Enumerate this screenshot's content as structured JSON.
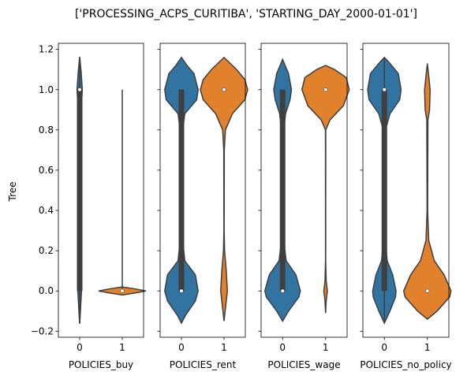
{
  "figure": {
    "suptitle": "['PROCESSING_ACPS_CURITIBA', 'STARTING_DAY_2000-01-01']"
  },
  "chart_data": [
    {
      "type": "violin",
      "xlabel": "POLICIES_buy",
      "ylabel": "Tree",
      "categories": [
        "0",
        "1"
      ],
      "ylim": [
        -0.23,
        1.23
      ],
      "yticks": [
        "1.2",
        "1.0",
        "0.8",
        "0.6",
        "0.4",
        "0.2",
        "0.0",
        "−0.2"
      ],
      "colors": [
        "#3274a1",
        "#e1812c"
      ],
      "violins": [
        {
          "category": "0",
          "median": 1.0,
          "q1": 0.0,
          "q3": 1.0,
          "whisker_low": -0.16,
          "whisker_high": 1.16,
          "density": [
            [
              -0.16,
              0.002
            ],
            [
              0.0,
              0.035
            ],
            [
              0.2,
              0.03
            ],
            [
              0.5,
              0.03
            ],
            [
              0.8,
              0.03
            ],
            [
              0.95,
              0.04
            ],
            [
              1.0,
              0.05
            ],
            [
              1.08,
              0.03
            ],
            [
              1.16,
              0.002
            ]
          ]
        },
        {
          "category": "1",
          "median": 0.0,
          "q1": 0.0,
          "q3": 0.0,
          "whisker_low": 0.0,
          "whisker_high": 1.0,
          "density": [
            [
              -0.02,
              0.0
            ],
            [
              -0.01,
              0.25
            ],
            [
              0.0,
              0.45
            ],
            [
              0.01,
              0.25
            ],
            [
              0.02,
              0.0
            ]
          ]
        }
      ]
    },
    {
      "type": "violin",
      "xlabel": "POLICIES_rent",
      "categories": [
        "0",
        "1"
      ],
      "ylim": [
        -0.23,
        1.23
      ],
      "colors": [
        "#3274a1",
        "#e1812c"
      ],
      "violins": [
        {
          "category": "0",
          "median": 0.0,
          "q1": 0.0,
          "q3": 1.0,
          "whisker_low": 0.0,
          "whisker_high": 1.0,
          "density": [
            [
              -0.16,
              0.0
            ],
            [
              -0.12,
              0.15
            ],
            [
              -0.05,
              0.5
            ],
            [
              0.0,
              0.6
            ],
            [
              0.08,
              0.5
            ],
            [
              0.15,
              0.12
            ],
            [
              0.25,
              0.05
            ],
            [
              0.5,
              0.04
            ],
            [
              0.8,
              0.05
            ],
            [
              0.88,
              0.12
            ],
            [
              0.95,
              0.55
            ],
            [
              1.0,
              0.6
            ],
            [
              1.08,
              0.45
            ],
            [
              1.12,
              0.2
            ],
            [
              1.16,
              0.0
            ]
          ]
        },
        {
          "category": "1",
          "median": 1.0,
          "q1": 1.0,
          "q3": 1.0,
          "whisker_low": 1.0,
          "whisker_high": 1.0,
          "density": [
            [
              -0.15,
              0.0
            ],
            [
              -0.1,
              0.04
            ],
            [
              0.0,
              0.12
            ],
            [
              0.1,
              0.08
            ],
            [
              0.2,
              0.02
            ],
            [
              0.3,
              0.005
            ],
            [
              0.7,
              0.01
            ],
            [
              0.8,
              0.05
            ],
            [
              0.88,
              0.3
            ],
            [
              0.95,
              0.75
            ],
            [
              1.0,
              0.85
            ],
            [
              1.05,
              0.75
            ],
            [
              1.1,
              0.45
            ],
            [
              1.16,
              0.0
            ]
          ]
        }
      ]
    },
    {
      "type": "violin",
      "xlabel": "POLICIES_wage",
      "categories": [
        "0",
        "1"
      ],
      "ylim": [
        -0.23,
        1.23
      ],
      "colors": [
        "#3274a1",
        "#e1812c"
      ],
      "violins": [
        {
          "category": "0",
          "median": 0.0,
          "q1": 0.0,
          "q3": 1.0,
          "whisker_low": 0.0,
          "whisker_high": 1.0,
          "density": [
            [
              -0.15,
              0.0
            ],
            [
              -0.1,
              0.2
            ],
            [
              -0.03,
              0.55
            ],
            [
              0.0,
              0.6
            ],
            [
              0.08,
              0.45
            ],
            [
              0.15,
              0.12
            ],
            [
              0.25,
              0.04
            ],
            [
              0.5,
              0.03
            ],
            [
              0.8,
              0.04
            ],
            [
              0.88,
              0.1
            ],
            [
              0.95,
              0.25
            ],
            [
              1.0,
              0.3
            ],
            [
              1.08,
              0.2
            ],
            [
              1.15,
              0.0
            ]
          ]
        },
        {
          "category": "1",
          "median": 1.0,
          "q1": 1.0,
          "q3": 1.0,
          "whisker_low": 1.0,
          "whisker_high": 1.0,
          "density": [
            [
              -0.11,
              0.0
            ],
            [
              -0.05,
              0.02
            ],
            [
              0.0,
              0.06
            ],
            [
              0.05,
              0.02
            ],
            [
              0.15,
              0.003
            ],
            [
              0.8,
              0.005
            ],
            [
              0.85,
              0.15
            ],
            [
              0.92,
              0.6
            ],
            [
              1.0,
              0.8
            ],
            [
              1.06,
              0.7
            ],
            [
              1.1,
              0.3
            ],
            [
              1.12,
              0.0
            ]
          ]
        }
      ]
    },
    {
      "type": "violin",
      "xlabel": "POLICIES_no_policy",
      "categories": [
        "0",
        "1"
      ],
      "ylim": [
        -0.23,
        1.23
      ],
      "colors": [
        "#3274a1",
        "#e1812c"
      ],
      "violins": [
        {
          "category": "0",
          "median": 1.0,
          "q1": 0.0,
          "q3": 1.0,
          "whisker_low": -0.16,
          "whisker_high": 1.16,
          "density": [
            [
              -0.16,
              0.0
            ],
            [
              -0.1,
              0.2
            ],
            [
              -0.03,
              0.4
            ],
            [
              0.0,
              0.42
            ],
            [
              0.08,
              0.3
            ],
            [
              0.15,
              0.1
            ],
            [
              0.25,
              0.04
            ],
            [
              0.5,
              0.03
            ],
            [
              0.8,
              0.04
            ],
            [
              0.88,
              0.2
            ],
            [
              0.95,
              0.55
            ],
            [
              1.0,
              0.6
            ],
            [
              1.08,
              0.5
            ],
            [
              1.13,
              0.2
            ],
            [
              1.16,
              0.0
            ]
          ]
        },
        {
          "category": "1",
          "median": 0.0,
          "q1": 0.0,
          "q3": 0.0,
          "whisker_low": 0.0,
          "whisker_high": 0.0,
          "density": [
            [
              -0.14,
              0.0
            ],
            [
              -0.1,
              0.35
            ],
            [
              -0.03,
              0.8
            ],
            [
              0.0,
              0.85
            ],
            [
              0.08,
              0.6
            ],
            [
              0.15,
              0.25
            ],
            [
              0.25,
              0.05
            ],
            [
              0.4,
              0.01
            ],
            [
              0.85,
              0.02
            ],
            [
              0.9,
              0.08
            ],
            [
              1.0,
              0.1
            ],
            [
              1.08,
              0.04
            ],
            [
              1.13,
              0.0
            ]
          ]
        }
      ]
    }
  ]
}
